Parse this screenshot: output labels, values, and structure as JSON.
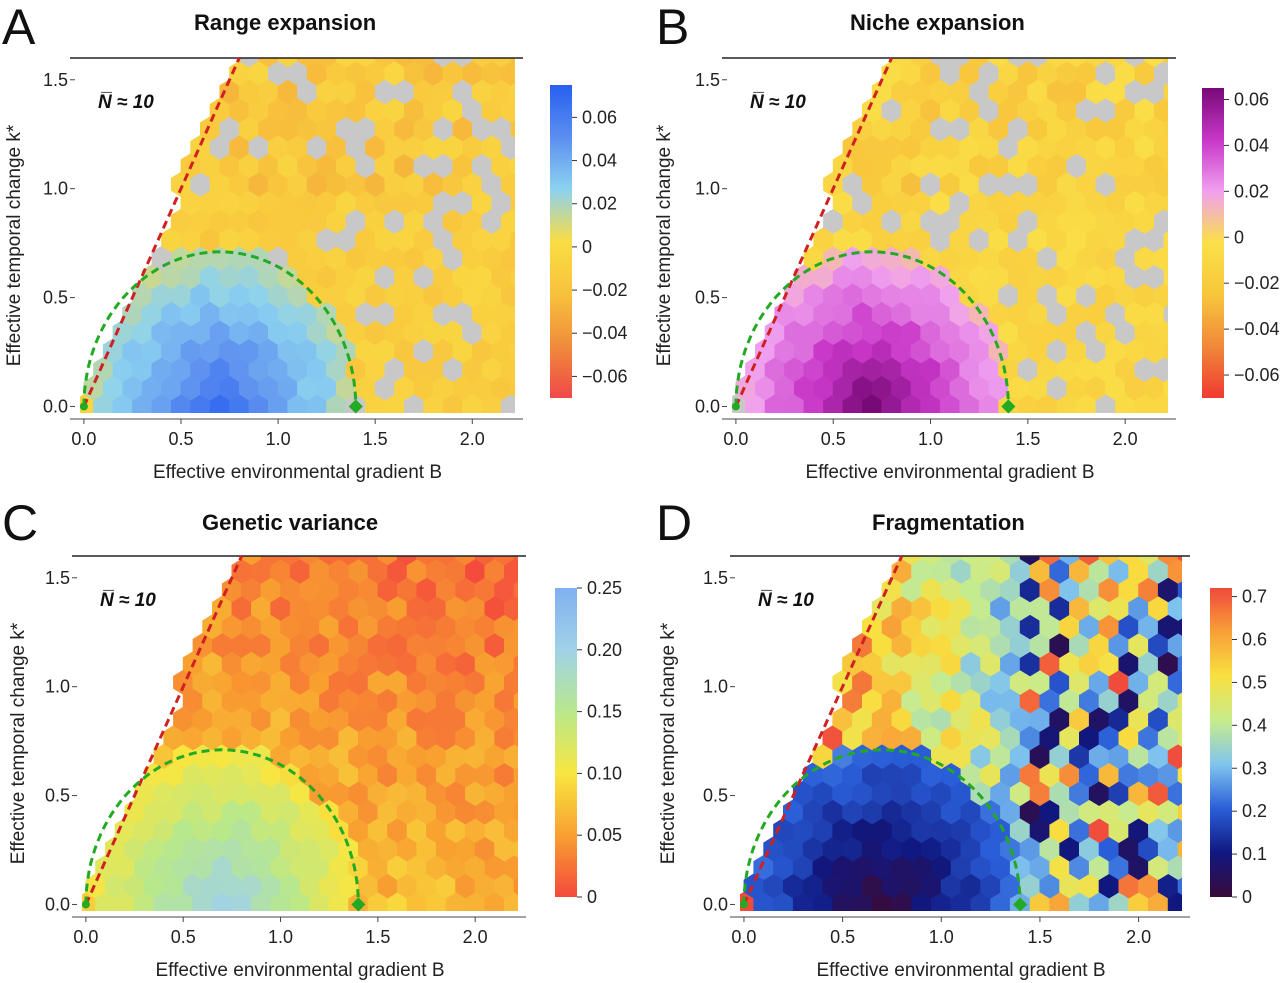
{
  "figure": {
    "xlabel": "Effective environmental gradient  B",
    "ylabel": "Effective temporal change  k*",
    "annotation": "N̅ ≈ 10",
    "xticks": [
      0.0,
      0.5,
      1.0,
      1.5,
      2.0
    ],
    "xtick_labels": [
      "0.0",
      "0.5",
      "1.0",
      "1.5",
      "2.0"
    ],
    "yticks": [
      0.0,
      0.5,
      1.0,
      1.5
    ],
    "ytick_labels": [
      "0.0",
      "0.5",
      "1.0",
      "1.5"
    ],
    "xlim": [
      -0.02,
      2.22
    ],
    "ylim": [
      -0.03,
      1.6
    ],
    "colors": {
      "boundary_red": "#d02020",
      "boundary_green": "#22aa22",
      "neutral_gray": "#c8c8c8"
    }
  },
  "chart_data": [
    {
      "type": "heatmap",
      "panel": "A",
      "title": "Range expansion",
      "colorbar": {
        "ticks": [
          0.06,
          0.04,
          0.02,
          0,
          -0.02,
          -0.04,
          -0.06
        ],
        "tick_labels": [
          "0.06",
          "0.04",
          "0.02",
          "0",
          "−0.02",
          "−0.04",
          "−0.06"
        ],
        "range": [
          -0.07,
          0.075
        ],
        "colors": [
          "#f04848",
          "#f08c3c",
          "#f8c23c",
          "#fadd44",
          "#8cd2f0",
          "#5c8ef0",
          "#2660f0"
        ]
      },
      "boundary_red_line": {
        "x": [
          0.0,
          0.8
        ],
        "y": [
          0.0,
          1.6
        ]
      },
      "boundary_green_curve": {
        "x": [
          0.0,
          0.3,
          0.6,
          0.9,
          1.0,
          1.2,
          1.35,
          1.4
        ],
        "y": [
          0.0,
          0.4,
          0.63,
          0.71,
          0.7,
          0.58,
          0.3,
          0.0
        ]
      },
      "green_endpoint": {
        "x": 1.4,
        "y": 0.0
      },
      "value_summary": {
        "inside_green_region": 0.04,
        "outside_region": -0.01,
        "max": 0.07,
        "min": -0.06
      }
    },
    {
      "type": "heatmap",
      "panel": "B",
      "title": "Niche expansion",
      "colorbar": {
        "ticks": [
          0.06,
          0.04,
          0.02,
          0,
          -0.02,
          -0.04,
          -0.06
        ],
        "tick_labels": [
          "0.06",
          "0.04",
          "0.02",
          "0",
          "−0.02",
          "−0.04",
          "−0.06"
        ],
        "range": [
          -0.07,
          0.065
        ],
        "colors": [
          "#f03a30",
          "#f0883a",
          "#f8c63c",
          "#fae048",
          "#f0a0f0",
          "#c836c8",
          "#780a78"
        ]
      },
      "boundary_red_line": {
        "x": [
          0.0,
          0.8
        ],
        "y": [
          0.0,
          1.6
        ]
      },
      "boundary_green_curve": {
        "x": [
          0.0,
          0.3,
          0.6,
          0.9,
          1.0,
          1.2,
          1.35,
          1.4
        ],
        "y": [
          0.0,
          0.4,
          0.63,
          0.71,
          0.7,
          0.58,
          0.3,
          0.0
        ]
      },
      "green_endpoint": {
        "x": 1.4,
        "y": 0.0
      },
      "value_summary": {
        "inside_green_region": 0.04,
        "outside_region": -0.01,
        "max": 0.06,
        "min": -0.06
      }
    },
    {
      "type": "heatmap",
      "panel": "C",
      "title": "Genetic variance",
      "colorbar": {
        "ticks": [
          0.25,
          0.2,
          0.15,
          0.1,
          0.05,
          0
        ],
        "tick_labels": [
          "0.25",
          "0.20",
          "0.15",
          "0.10",
          "0.05",
          "0"
        ],
        "range": [
          0,
          0.25
        ],
        "colors": [
          "#f44a3c",
          "#f8a030",
          "#f8e640",
          "#b8e88c",
          "#a0d2e8",
          "#80b0f0"
        ]
      },
      "boundary_red_line": {
        "x": [
          0.0,
          0.8
        ],
        "y": [
          0.0,
          1.6
        ]
      },
      "boundary_green_curve": {
        "x": [
          0.0,
          0.3,
          0.6,
          0.9,
          1.0,
          1.2,
          1.35,
          1.4
        ],
        "y": [
          0.0,
          0.4,
          0.63,
          0.71,
          0.7,
          0.58,
          0.3,
          0.0
        ]
      },
      "green_endpoint": {
        "x": 1.4,
        "y": 0.0
      },
      "value_summary": {
        "inside_green_region": 0.14,
        "outside_region": 0.04,
        "max": 0.2,
        "min": 0.0
      }
    },
    {
      "type": "heatmap",
      "panel": "D",
      "title": "Fragmentation",
      "colorbar": {
        "ticks": [
          0.7,
          0.6,
          0.5,
          0.4,
          0.3,
          0.2,
          0.1,
          0
        ],
        "tick_labels": [
          "0.7",
          "0.6",
          "0.5",
          "0.4",
          "0.3",
          "0.2",
          "0.1",
          "0"
        ],
        "range": [
          0,
          0.72
        ],
        "colors": [
          "#3a0a3a",
          "#101880",
          "#2a5ed8",
          "#80c4ee",
          "#c8ec8c",
          "#f8e040",
          "#f8a038",
          "#f04a3c"
        ]
      },
      "boundary_red_line": {
        "x": [
          0.0,
          0.8
        ],
        "y": [
          0.0,
          1.6
        ]
      },
      "boundary_green_curve": {
        "x": [
          0.0,
          0.3,
          0.6,
          0.9,
          1.0,
          1.2,
          1.35,
          1.4
        ],
        "y": [
          0.0,
          0.4,
          0.63,
          0.71,
          0.7,
          0.58,
          0.3,
          0.0
        ]
      },
      "green_endpoint": {
        "x": 1.4,
        "y": 0.0
      },
      "value_summary": {
        "inside_green_region": 0.1,
        "outside_region": 0.3,
        "max": 0.7,
        "min": 0.0
      }
    }
  ]
}
